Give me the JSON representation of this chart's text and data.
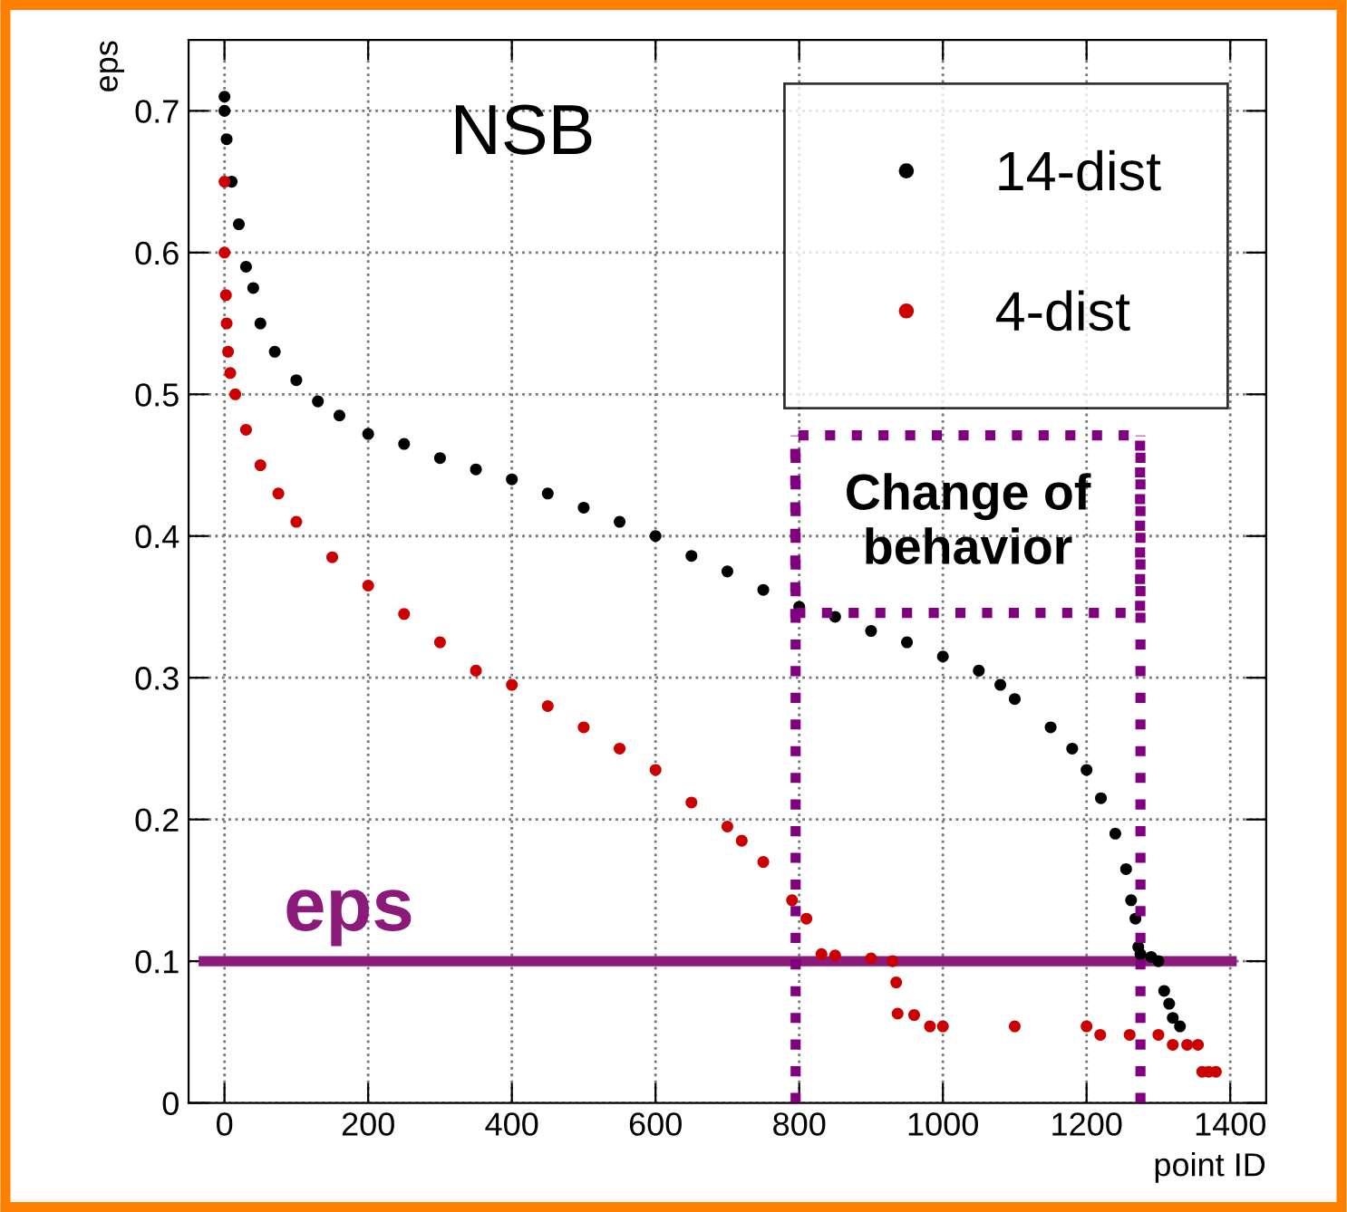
{
  "chart_data": {
    "type": "scatter",
    "xlabel": "point ID",
    "ylabel": "eps",
    "annotations": [
      "NSB",
      "Change of\nbehavior"
    ],
    "xlim": [
      -50,
      1450
    ],
    "ylim": [
      0,
      0.75
    ],
    "xticks": [
      0,
      200,
      400,
      600,
      800,
      1000,
      1200,
      1400
    ],
    "yticks": [
      0,
      0.1,
      0.2,
      0.3,
      0.4,
      0.5,
      0.6,
      0.7
    ],
    "grid": true,
    "legend": "top right",
    "marker": "circle",
    "series": [
      {
        "name": "14-dist",
        "color": "#000000",
        "x": [
          0,
          0,
          3,
          10,
          20,
          30,
          40,
          50,
          70,
          100,
          130,
          160,
          200,
          250,
          300,
          350,
          400,
          450,
          500,
          550,
          600,
          650,
          700,
          750,
          800,
          850,
          900,
          950,
          1000,
          1050,
          1080,
          1100,
          1150,
          1180,
          1200,
          1220,
          1240,
          1255,
          1262,
          1268,
          1272,
          1275,
          1290,
          1300,
          1308,
          1315,
          1320,
          1330
        ],
        "values": [
          0.71,
          0.7,
          0.68,
          0.65,
          0.62,
          0.59,
          0.575,
          0.55,
          0.53,
          0.51,
          0.495,
          0.485,
          0.472,
          0.465,
          0.455,
          0.447,
          0.44,
          0.43,
          0.42,
          0.41,
          0.4,
          0.386,
          0.375,
          0.362,
          0.35,
          0.343,
          0.333,
          0.325,
          0.315,
          0.305,
          0.295,
          0.285,
          0.265,
          0.25,
          0.235,
          0.215,
          0.19,
          0.165,
          0.143,
          0.13,
          0.11,
          0.105,
          0.103,
          0.1,
          0.079,
          0.07,
          0.06,
          0.054
        ]
      },
      {
        "name": "4-dist",
        "color": "#cc0000",
        "x": [
          0,
          0,
          2,
          3,
          5,
          8,
          15,
          30,
          50,
          75,
          100,
          150,
          200,
          250,
          300,
          350,
          400,
          450,
          500,
          550,
          600,
          650,
          700,
          720,
          750,
          790,
          810,
          831,
          850,
          900,
          930,
          935,
          937,
          960,
          982,
          1000,
          1100,
          1200,
          1219,
          1260,
          1300,
          1320,
          1340,
          1355,
          1361,
          1370,
          1380
        ],
        "values": [
          0.65,
          0.6,
          0.57,
          0.55,
          0.53,
          0.515,
          0.5,
          0.475,
          0.45,
          0.43,
          0.41,
          0.385,
          0.365,
          0.345,
          0.325,
          0.305,
          0.295,
          0.28,
          0.265,
          0.25,
          0.235,
          0.212,
          0.195,
          0.185,
          0.17,
          0.143,
          0.13,
          0.105,
          0.104,
          0.102,
          0.1,
          0.085,
          0.063,
          0.062,
          0.054,
          0.054,
          0.054,
          0.054,
          0.048,
          0.048,
          0.048,
          0.041,
          0.041,
          0.041,
          0.022,
          0.022,
          0.022
        ]
      }
    ],
    "ref_lines": [
      {
        "axis": "y",
        "value": 0.1,
        "label": "eps",
        "color": "#8b1a7b",
        "line_style": "solid"
      },
      {
        "axis": "x",
        "value": 795,
        "color": "#800080",
        "line_style": "dotted"
      },
      {
        "axis": "x",
        "value": 1275,
        "color": "#800080",
        "line_style": "dotted"
      }
    ]
  }
}
